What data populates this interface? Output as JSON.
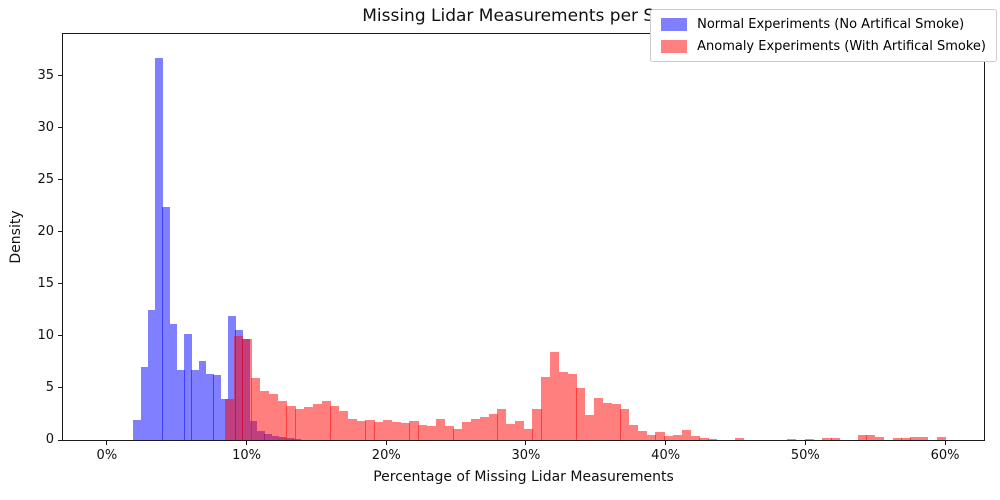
{
  "figure": {
    "title": "Missing Lidar Measurements per Scan",
    "xlabel": "Percentage of Missing Lidar Measurements",
    "ylabel": "Density"
  },
  "legend": {
    "entries": [
      {
        "label": "Normal Experiments (No Artifical Smoke)",
        "color": "#8080ff"
      },
      {
        "label": "Anomaly Experiments (With Artifical Smoke)",
        "color": "#ff8080"
      }
    ]
  },
  "chart_data": {
    "type": "bar",
    "subtype": "overlaid-density-histogram",
    "title": "Missing Lidar Measurements per Scan",
    "xlabel": "Percentage of Missing Lidar Measurements",
    "ylabel": "Density",
    "xlim": [
      -3.14,
      62.79
    ],
    "ylim": [
      0,
      39
    ],
    "grid": false,
    "legend_position": "upper right",
    "x_ticks": {
      "values": [
        0,
        10,
        20,
        30,
        40,
        50,
        60
      ],
      "labels": [
        "0%",
        "10%",
        "20%",
        "30%",
        "40%",
        "50%",
        "60%"
      ]
    },
    "y_ticks": {
      "values": [
        0,
        5,
        10,
        15,
        20,
        25,
        30,
        35
      ],
      "labels": [
        "0",
        "5",
        "10",
        "15",
        "20",
        "25",
        "30",
        "35"
      ]
    },
    "series": [
      {
        "name": "Normal Experiments (No Artifical Smoke)",
        "color": "rgba(0,0,255,0.5)",
        "bin_start": 1.89,
        "bin_width": 0.521,
        "heights": [
          1.9,
          7.0,
          12.5,
          36.7,
          22.4,
          11.1,
          6.7,
          10.2,
          6.7,
          7.6,
          6.3,
          6.2,
          3.9,
          11.9,
          10.6,
          9.7,
          1.8,
          0.9,
          0.55,
          0.35,
          0.25,
          0.15,
          0.1
        ]
      },
      {
        "name": "Anomaly Experiments (With Artifical Smoke)",
        "color": "rgba(255,0,0,0.5)",
        "bin_start": 8.45,
        "bin_width": 0.629,
        "heights": [
          3.9,
          10.0,
          9.7,
          6.0,
          4.7,
          4.4,
          3.75,
          3.3,
          3.0,
          3.2,
          3.5,
          3.7,
          3.3,
          2.8,
          2.0,
          1.85,
          1.95,
          1.75,
          1.95,
          1.7,
          1.6,
          1.85,
          1.4,
          1.35,
          2.0,
          1.3,
          1.05,
          1.75,
          2.0,
          2.2,
          2.5,
          3.0,
          1.5,
          1.85,
          1.05,
          3.0,
          6.05,
          8.45,
          6.5,
          6.35,
          4.95,
          2.4,
          4.0,
          3.6,
          3.5,
          3.0,
          1.45,
          0.85,
          0.5,
          0.75,
          0.35,
          0.5,
          0.95,
          0.35,
          0.2,
          0.1,
          0,
          0,
          0.15,
          0,
          0,
          0,
          0,
          0,
          0.1,
          0,
          0.1,
          0,
          0.2,
          0.15,
          0,
          0,
          0.45,
          0.5,
          0.25,
          0,
          0.2,
          0.2,
          0.25,
          0.25,
          0,
          0.3
        ]
      }
    ]
  }
}
